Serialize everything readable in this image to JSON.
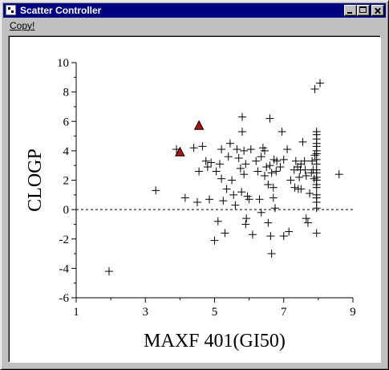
{
  "window": {
    "title": "Scatter Controller",
    "icon": "app-icon",
    "controls": [
      "minimize-icon",
      "maximize-icon",
      "close-icon"
    ]
  },
  "menu": {
    "items": [
      {
        "label": "Copy!"
      }
    ]
  },
  "chart_data": {
    "type": "scatter",
    "xlabel": "MAXF 401(GI50)",
    "ylabel": "CLOGP",
    "xlim": [
      1,
      9
    ],
    "ylim": [
      -6,
      10
    ],
    "xticks": [
      "1",
      "3",
      "5",
      "7",
      "9"
    ],
    "yticks": [
      "10",
      "8",
      "6",
      "4",
      "2",
      "0",
      "-2",
      "-4",
      "-6"
    ],
    "reference_line": {
      "y": 0,
      "style": "dashed"
    },
    "colors": {
      "plus": "#000000",
      "triangle": "#b01010"
    },
    "series": [
      {
        "marker": "plus",
        "points": [
          [
            1.95,
            -4.2
          ],
          [
            3.3,
            1.3
          ],
          [
            3.9,
            4.1
          ],
          [
            4.15,
            0.8
          ],
          [
            4.4,
            4.2
          ],
          [
            4.5,
            0.5
          ],
          [
            4.55,
            2.6
          ],
          [
            4.65,
            4.3
          ],
          [
            4.75,
            3.3
          ],
          [
            4.8,
            2.9
          ],
          [
            4.85,
            0.7
          ],
          [
            4.9,
            3.2
          ],
          [
            5.0,
            -2.1
          ],
          [
            5.05,
            2.6
          ],
          [
            5.1,
            -0.8
          ],
          [
            5.15,
            3.1
          ],
          [
            5.2,
            4.1
          ],
          [
            5.2,
            2.1
          ],
          [
            5.25,
            0.6
          ],
          [
            5.3,
            -1.6
          ],
          [
            5.35,
            1.4
          ],
          [
            5.4,
            3.6
          ],
          [
            5.45,
            4.5
          ],
          [
            5.5,
            2.0
          ],
          [
            5.55,
            1.0
          ],
          [
            5.6,
            0.3
          ],
          [
            5.65,
            4.1
          ],
          [
            5.7,
            3.5
          ],
          [
            5.75,
            2.8
          ],
          [
            5.78,
            1.2
          ],
          [
            5.8,
            6.3
          ],
          [
            5.8,
            5.3
          ],
          [
            5.85,
            4.0
          ],
          [
            5.85,
            2.4
          ],
          [
            5.9,
            3.1
          ],
          [
            5.9,
            -1.0
          ],
          [
            5.92,
            -0.6
          ],
          [
            5.95,
            0.9
          ],
          [
            6.0,
            0.7
          ],
          [
            6.05,
            4.1
          ],
          [
            6.1,
            -1.7
          ],
          [
            6.2,
            3.3
          ],
          [
            6.25,
            2.6
          ],
          [
            6.3,
            0.7
          ],
          [
            6.35,
            -0.2
          ],
          [
            6.35,
            3.6
          ],
          [
            6.4,
            4.2
          ],
          [
            6.45,
            4.0
          ],
          [
            6.45,
            2.3
          ],
          [
            6.5,
            2.9
          ],
          [
            6.55,
            1.7
          ],
          [
            6.55,
            -0.9
          ],
          [
            6.6,
            6.2
          ],
          [
            6.6,
            3.0
          ],
          [
            6.62,
            -1.8
          ],
          [
            6.65,
            2.5
          ],
          [
            6.65,
            -3.0
          ],
          [
            6.7,
            1.5
          ],
          [
            6.7,
            0.8
          ],
          [
            6.72,
            3.4
          ],
          [
            6.75,
            0.1
          ],
          [
            6.78,
            2.6
          ],
          [
            6.8,
            3.3
          ],
          [
            6.9,
            2.9
          ],
          [
            6.95,
            5.3
          ],
          [
            7.0,
            3.4
          ],
          [
            7.0,
            -1.8
          ],
          [
            7.1,
            4.1
          ],
          [
            7.15,
            -1.5
          ],
          [
            7.2,
            2.0
          ],
          [
            7.3,
            2.7
          ],
          [
            7.32,
            1.5
          ],
          [
            7.35,
            3.3
          ],
          [
            7.4,
            2.9
          ],
          [
            7.42,
            1.4
          ],
          [
            7.45,
            2.2
          ],
          [
            7.48,
            2.7
          ],
          [
            7.5,
            3.1
          ],
          [
            7.5,
            1.4
          ],
          [
            7.55,
            4.6
          ],
          [
            7.6,
            3.3
          ],
          [
            7.62,
            2.7
          ],
          [
            7.65,
            2.3
          ],
          [
            7.65,
            -0.6
          ],
          [
            7.7,
            -0.9
          ],
          [
            7.75,
            1.1
          ],
          [
            7.8,
            2.5
          ],
          [
            7.82,
            3.3
          ],
          [
            7.85,
            2.7
          ],
          [
            7.88,
            2.1
          ],
          [
            7.9,
            3.7
          ],
          [
            7.9,
            8.2
          ],
          [
            7.95,
            5.3
          ],
          [
            7.95,
            5.1
          ],
          [
            7.95,
            4.8
          ],
          [
            7.95,
            4.5
          ],
          [
            7.95,
            4.3
          ],
          [
            7.95,
            4.0
          ],
          [
            7.95,
            3.8
          ],
          [
            7.95,
            3.4
          ],
          [
            7.95,
            3.1
          ],
          [
            7.95,
            2.7
          ],
          [
            7.95,
            2.5
          ],
          [
            7.95,
            2.2
          ],
          [
            7.95,
            2.0
          ],
          [
            7.95,
            1.7
          ],
          [
            7.95,
            1.5
          ],
          [
            7.95,
            1.0
          ],
          [
            7.95,
            0.8
          ],
          [
            7.95,
            0.5
          ],
          [
            7.95,
            0.1
          ],
          [
            7.95,
            -1.6
          ],
          [
            8.05,
            8.6
          ],
          [
            8.6,
            2.4
          ]
        ]
      },
      {
        "marker": "triangle",
        "points": [
          [
            4.0,
            3.9
          ],
          [
            4.55,
            5.7
          ]
        ]
      }
    ]
  }
}
